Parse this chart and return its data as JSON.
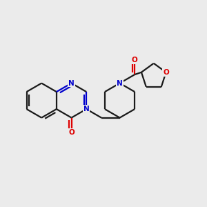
{
  "background_color": "#ebebeb",
  "line_color": "#1a1a1a",
  "nitrogen_color": "#0000cc",
  "oxygen_color": "#dd0000",
  "line_width": 1.6,
  "figsize": [
    3.0,
    3.0
  ],
  "dpi": 100,
  "xlim": [
    0,
    10
  ],
  "ylim": [
    0,
    10
  ],
  "font_size": 7.5
}
